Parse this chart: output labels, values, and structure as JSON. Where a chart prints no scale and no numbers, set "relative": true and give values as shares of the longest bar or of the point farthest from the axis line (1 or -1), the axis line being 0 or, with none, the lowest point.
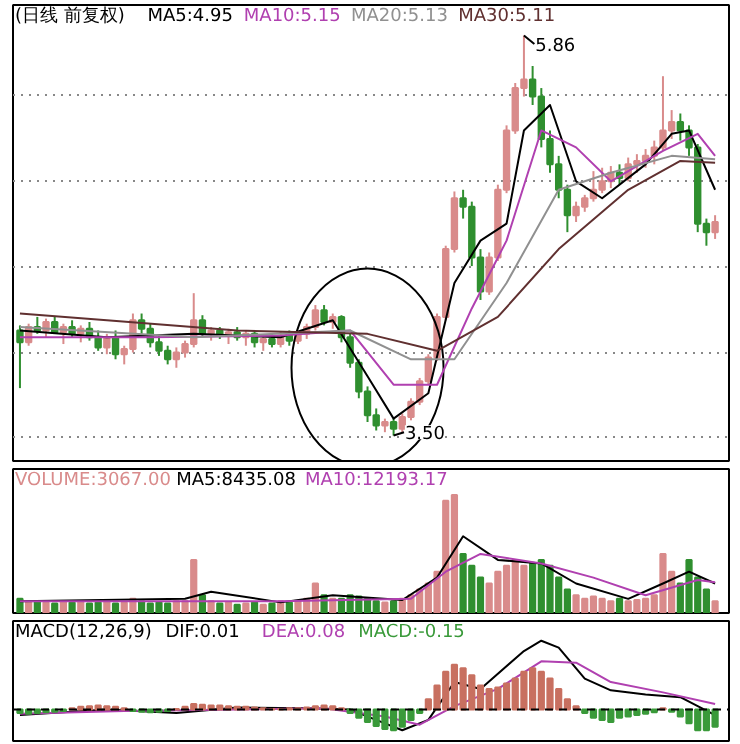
{
  "chart_data": [
    {
      "type": "candlestick",
      "title": "(日线 前复权)",
      "legend": "top",
      "tick_labels": false,
      "grid": "y",
      "categories": [
        null,
        null,
        null,
        null,
        null,
        null,
        null,
        null,
        null,
        null,
        null,
        null,
        null,
        null,
        null,
        null,
        null,
        null,
        null,
        null,
        null,
        null,
        null,
        null,
        null,
        null,
        null,
        null,
        null,
        null,
        null,
        null,
        null,
        null,
        null,
        null,
        null,
        null,
        null,
        null,
        null,
        null,
        null,
        null,
        null,
        null,
        null,
        null,
        null,
        null,
        null,
        null,
        null,
        null,
        null,
        null,
        null,
        null,
        null,
        null,
        null,
        null,
        null,
        null,
        null,
        null,
        null,
        null,
        null,
        null,
        null,
        null,
        null,
        null,
        null,
        null,
        null,
        null,
        null,
        null,
        null
      ],
      "ohlc": [
        [
          4.12,
          4.15,
          3.78,
          4.05
        ],
        [
          4.05,
          4.16,
          4.03,
          4.14
        ],
        [
          4.14,
          4.2,
          4.1,
          4.12
        ],
        [
          4.12,
          4.19,
          4.08,
          4.17
        ],
        [
          4.17,
          4.2,
          4.1,
          4.11
        ],
        [
          4.11,
          4.16,
          4.04,
          4.14
        ],
        [
          4.14,
          4.18,
          4.08,
          4.1
        ],
        [
          4.1,
          4.15,
          4.05,
          4.13
        ],
        [
          4.13,
          4.17,
          4.06,
          4.08
        ],
        [
          4.08,
          4.12,
          4.0,
          4.02
        ],
        [
          4.02,
          4.1,
          3.98,
          4.08
        ],
        [
          4.08,
          4.12,
          3.95,
          3.98
        ],
        [
          3.98,
          4.03,
          3.92,
          4.01
        ],
        [
          4.01,
          4.22,
          3.99,
          4.18
        ],
        [
          4.18,
          4.22,
          4.1,
          4.13
        ],
        [
          4.13,
          4.16,
          4.02,
          4.05
        ],
        [
          4.05,
          4.09,
          3.97,
          4.0
        ],
        [
          4.0,
          4.03,
          3.92,
          3.95
        ],
        [
          3.95,
          4.02,
          3.9,
          3.99
        ],
        [
          3.99,
          4.06,
          3.96,
          4.04
        ],
        [
          4.04,
          4.34,
          4.02,
          4.18
        ],
        [
          4.18,
          4.21,
          4.08,
          4.1
        ],
        [
          4.1,
          4.14,
          4.06,
          4.12
        ],
        [
          4.12,
          4.14,
          4.07,
          4.09
        ],
        [
          4.09,
          4.13,
          4.04,
          4.11
        ],
        [
          4.11,
          4.14,
          4.06,
          4.08
        ],
        [
          4.08,
          4.12,
          4.03,
          4.1
        ],
        [
          4.1,
          4.12,
          4.02,
          4.05
        ],
        [
          4.05,
          4.09,
          4.0,
          4.07
        ],
        [
          4.07,
          4.1,
          4.02,
          4.04
        ],
        [
          4.04,
          4.11,
          4.02,
          4.09
        ],
        [
          4.09,
          4.12,
          4.03,
          4.06
        ],
        [
          4.06,
          4.11,
          4.04,
          4.1
        ],
        [
          4.1,
          4.16,
          4.07,
          4.14
        ],
        [
          4.14,
          4.27,
          4.12,
          4.24
        ],
        [
          4.24,
          4.27,
          4.15,
          4.17
        ],
        [
          4.17,
          4.22,
          4.13,
          4.2
        ],
        [
          4.2,
          4.21,
          4.05,
          4.08
        ],
        [
          4.08,
          4.1,
          3.9,
          3.93
        ],
        [
          3.93,
          3.95,
          3.72,
          3.76
        ],
        [
          3.76,
          3.79,
          3.58,
          3.62
        ],
        [
          3.62,
          3.66,
          3.53,
          3.56
        ],
        [
          3.56,
          3.6,
          3.52,
          3.58
        ],
        [
          3.58,
          3.6,
          3.5,
          3.54
        ],
        [
          3.54,
          3.63,
          3.52,
          3.61
        ],
        [
          3.61,
          3.72,
          3.59,
          3.7
        ],
        [
          3.7,
          3.84,
          3.68,
          3.82
        ],
        [
          3.82,
          3.98,
          3.8,
          3.96
        ],
        [
          3.96,
          4.22,
          3.94,
          4.2
        ],
        [
          4.2,
          4.62,
          4.18,
          4.6
        ],
        [
          4.6,
          4.94,
          4.58,
          4.9
        ],
        [
          4.9,
          4.95,
          4.78,
          4.85
        ],
        [
          4.85,
          4.88,
          4.5,
          4.55
        ],
        [
          4.55,
          4.6,
          4.3,
          4.35
        ],
        [
          4.35,
          4.58,
          4.33,
          4.55
        ],
        [
          4.55,
          4.98,
          4.53,
          4.95
        ],
        [
          4.95,
          5.33,
          4.93,
          5.3
        ],
        [
          5.3,
          5.58,
          5.28,
          5.55
        ],
        [
          5.55,
          5.86,
          5.5,
          5.6
        ],
        [
          5.6,
          5.68,
          5.45,
          5.5
        ],
        [
          5.5,
          5.55,
          5.2,
          5.25
        ],
        [
          5.25,
          5.3,
          5.05,
          5.1
        ],
        [
          5.1,
          5.15,
          4.9,
          4.95
        ],
        [
          4.95,
          4.98,
          4.7,
          4.8
        ],
        [
          4.8,
          4.88,
          4.76,
          4.85
        ],
        [
          4.85,
          4.92,
          4.82,
          4.9
        ],
        [
          4.9,
          5.06,
          4.88,
          4.95
        ],
        [
          4.95,
          5.08,
          4.93,
          5.0
        ],
        [
          5.0,
          5.09,
          4.96,
          5.05
        ],
        [
          5.05,
          5.1,
          4.98,
          5.02
        ],
        [
          5.02,
          5.14,
          5.0,
          5.1
        ],
        [
          5.1,
          5.16,
          5.05,
          5.12
        ],
        [
          5.12,
          5.19,
          5.08,
          5.15
        ],
        [
          5.15,
          5.24,
          5.1,
          5.2
        ],
        [
          5.2,
          5.62,
          5.18,
          5.3
        ],
        [
          5.3,
          5.42,
          5.25,
          5.35
        ],
        [
          5.35,
          5.4,
          5.24,
          5.3
        ],
        [
          5.3,
          5.33,
          5.15,
          5.2
        ],
        [
          5.2,
          5.22,
          4.7,
          4.75
        ],
        [
          4.75,
          4.78,
          4.62,
          4.7
        ],
        [
          4.7,
          4.8,
          4.66,
          4.76
        ]
      ],
      "colors": [
        "#2f8f2f",
        "#d98b8b",
        "#2f8f2f",
        "#d98b8b",
        "#2f8f2f",
        "#d98b8b",
        "#2f8f2f",
        "#d98b8b",
        "#2f8f2f",
        "#2f8f2f",
        "#d98b8b",
        "#2f8f2f",
        "#d98b8b",
        "#d98b8b",
        "#2f8f2f",
        "#2f8f2f",
        "#2f8f2f",
        "#2f8f2f",
        "#d98b8b",
        "#d98b8b",
        "#d98b8b",
        "#2f8f2f",
        "#d98b8b",
        "#2f8f2f",
        "#d98b8b",
        "#2f8f2f",
        "#d98b8b",
        "#2f8f2f",
        "#d98b8b",
        "#2f8f2f",
        "#d98b8b",
        "#2f8f2f",
        "#d98b8b",
        "#d98b8b",
        "#d98b8b",
        "#2f8f2f",
        "#d98b8b",
        "#2f8f2f",
        "#2f8f2f",
        "#2f8f2f",
        "#2f8f2f",
        "#2f8f2f",
        "#d98b8b",
        "#2f8f2f",
        "#d98b8b",
        "#d98b8b",
        "#d98b8b",
        "#d98b8b",
        "#d98b8b",
        "#d98b8b",
        "#d98b8b",
        "#2f8f2f",
        "#2f8f2f",
        "#2f8f2f",
        "#d98b8b",
        "#d98b8b",
        "#d98b8b",
        "#d98b8b",
        "#d98b8b",
        "#2f8f2f",
        "#2f8f2f",
        "#2f8f2f",
        "#2f8f2f",
        "#2f8f2f",
        "#d98b8b",
        "#d98b8b",
        "#d98b8b",
        "#d98b8b",
        "#d98b8b",
        "#2f8f2f",
        "#d98b8b",
        "#d98b8b",
        "#d98b8b",
        "#d98b8b",
        "#d98b8b",
        "#d98b8b",
        "#2f8f2f",
        "#2f8f2f",
        "#2f8f2f",
        "#2f8f2f",
        "#d98b8b"
      ],
      "ylim": [
        3.35,
        6.04
      ],
      "yticks": [
        {
          "value": 3.49,
          "label": null
        },
        {
          "value": 3.99,
          "label": null
        },
        {
          "value": 4.49,
          "label": null
        },
        {
          "value": 5.0,
          "label": null
        },
        {
          "value": 5.51,
          "label": null
        }
      ],
      "series": [
        {
          "name": "MA5:4.95",
          "type": "line",
          "color": "#000000",
          "values": [
            4.12,
            null,
            null,
            null,
            null,
            null,
            null,
            null,
            null,
            null,
            4.08,
            null,
            null,
            null,
            null,
            null,
            null,
            null,
            null,
            null,
            4.1,
            null,
            null,
            null,
            null,
            null,
            null,
            null,
            null,
            null,
            4.08,
            null,
            null,
            null,
            null,
            null,
            4.18,
            null,
            null,
            null,
            3.85,
            null,
            null,
            3.6,
            null,
            null,
            null,
            3.75,
            null,
            null,
            4.4,
            null,
            null,
            4.65,
            null,
            null,
            4.75,
            null,
            5.3,
            null,
            null,
            5.45,
            null,
            null,
            5.0,
            null,
            null,
            4.9,
            null,
            null,
            null,
            null,
            5.1,
            null,
            null,
            5.28,
            null,
            5.3,
            null,
            null,
            4.95
          ]
        },
        {
          "name": "MA10:5.15",
          "type": "line",
          "color": "#b040b0",
          "values": [
            4.08,
            null,
            null,
            null,
            null,
            null,
            null,
            null,
            null,
            null,
            null,
            null,
            null,
            null,
            null,
            4.08,
            null,
            null,
            null,
            null,
            null,
            null,
            null,
            null,
            null,
            null,
            null,
            null,
            null,
            null,
            4.09,
            null,
            null,
            null,
            null,
            null,
            null,
            null,
            4.12,
            null,
            null,
            null,
            null,
            3.8,
            null,
            null,
            null,
            null,
            3.8,
            null,
            null,
            null,
            4.25,
            null,
            null,
            null,
            4.65,
            null,
            null,
            null,
            5.3,
            null,
            null,
            null,
            5.2,
            null,
            null,
            null,
            5.0,
            null,
            null,
            null,
            null,
            null,
            5.18,
            null,
            null,
            null,
            5.28,
            null,
            5.15
          ]
        },
        {
          "name": "MA20:5.13",
          "type": "line",
          "color": "#909090",
          "values": [
            4.14,
            null,
            null,
            null,
            null,
            null,
            null,
            null,
            null,
            null,
            null,
            null,
            null,
            null,
            null,
            null,
            null,
            null,
            null,
            null,
            4.08,
            null,
            null,
            null,
            null,
            null,
            null,
            null,
            null,
            null,
            null,
            null,
            null,
            null,
            null,
            null,
            null,
            null,
            4.12,
            null,
            null,
            null,
            null,
            null,
            null,
            3.95,
            null,
            null,
            null,
            null,
            3.95,
            null,
            null,
            null,
            null,
            null,
            4.4,
            null,
            null,
            null,
            null,
            null,
            4.95,
            null,
            null,
            null,
            null,
            null,
            5.05,
            null,
            null,
            null,
            null,
            null,
            null,
            5.15,
            null,
            null,
            null,
            null,
            5.13
          ]
        },
        {
          "name": "MA30:5.11",
          "type": "line",
          "color": "#603030",
          "values": [
            4.22,
            null,
            null,
            null,
            null,
            null,
            null,
            null,
            null,
            null,
            4.18,
            null,
            null,
            null,
            null,
            null,
            null,
            null,
            null,
            null,
            null,
            null,
            null,
            null,
            null,
            4.12,
            null,
            null,
            null,
            null,
            null,
            null,
            null,
            null,
            null,
            null,
            null,
            null,
            null,
            null,
            4.1,
            null,
            null,
            null,
            null,
            null,
            null,
            null,
            4.0,
            null,
            null,
            null,
            null,
            null,
            null,
            4.2,
            null,
            null,
            null,
            null,
            null,
            null,
            4.6,
            null,
            null,
            null,
            null,
            null,
            null,
            null,
            4.95,
            null,
            null,
            null,
            null,
            null,
            5.12,
            null,
            null,
            null,
            5.11
          ]
        }
      ],
      "annotations": [
        "5.86",
        "3.50"
      ]
    },
    {
      "type": "bar",
      "relative": true,
      "legend": "top",
      "categories": [
        null,
        null,
        null,
        null,
        null,
        null,
        null,
        null,
        null,
        null,
        null,
        null,
        null,
        null,
        null,
        null,
        null,
        null,
        null,
        null,
        null,
        null,
        null,
        null,
        null,
        null,
        null,
        null,
        null,
        null,
        null,
        null,
        null,
        null,
        null,
        null,
        null,
        null,
        null,
        null,
        null,
        null,
        null,
        null,
        null,
        null,
        null,
        null,
        null,
        null,
        null,
        null,
        null,
        null,
        null,
        null,
        null,
        null,
        null,
        null,
        null,
        null,
        null,
        null,
        null,
        null,
        null,
        null,
        null,
        null,
        null,
        null,
        null,
        null,
        null,
        null,
        null,
        null,
        null,
        null,
        null
      ],
      "series": [
        {
          "name": "VOLUME:3067.00",
          "type": "bar",
          "values": [
            0.12,
            0.1,
            0.1,
            0.09,
            0.08,
            0.1,
            0.09,
            0.1,
            0.08,
            0.09,
            0.1,
            0.08,
            0.09,
            0.12,
            0.1,
            0.08,
            0.09,
            0.08,
            0.1,
            0.1,
            0.45,
            0.15,
            0.1,
            0.08,
            0.09,
            0.07,
            0.08,
            0.09,
            0.07,
            0.08,
            0.1,
            0.09,
            0.1,
            0.12,
            0.25,
            0.15,
            0.12,
            0.12,
            0.15,
            0.14,
            0.12,
            0.1,
            0.09,
            0.1,
            0.12,
            0.15,
            0.2,
            0.25,
            0.35,
            0.95,
            1.0,
            0.5,
            0.4,
            0.3,
            0.25,
            0.35,
            0.4,
            0.45,
            0.4,
            0.42,
            0.45,
            0.4,
            0.3,
            0.2,
            0.15,
            0.12,
            0.14,
            0.12,
            0.1,
            0.12,
            0.1,
            0.11,
            0.12,
            0.15,
            0.5,
            0.35,
            0.25,
            0.45,
            0.3,
            0.2,
            0.1
          ],
          "colors": [
            "#2f8f2f",
            "#d98b8b",
            "#2f8f2f",
            "#d98b8b",
            "#2f8f2f",
            "#d98b8b",
            "#2f8f2f",
            "#d98b8b",
            "#2f8f2f",
            "#2f8f2f",
            "#d98b8b",
            "#2f8f2f",
            "#d98b8b",
            "#d98b8b",
            "#2f8f2f",
            "#2f8f2f",
            "#2f8f2f",
            "#2f8f2f",
            "#d98b8b",
            "#d98b8b",
            "#d98b8b",
            "#2f8f2f",
            "#d98b8b",
            "#2f8f2f",
            "#d98b8b",
            "#2f8f2f",
            "#d98b8b",
            "#2f8f2f",
            "#d98b8b",
            "#2f8f2f",
            "#d98b8b",
            "#2f8f2f",
            "#d98b8b",
            "#d98b8b",
            "#d98b8b",
            "#2f8f2f",
            "#d98b8b",
            "#2f8f2f",
            "#2f8f2f",
            "#2f8f2f",
            "#2f8f2f",
            "#2f8f2f",
            "#d98b8b",
            "#2f8f2f",
            "#d98b8b",
            "#d98b8b",
            "#d98b8b",
            "#d98b8b",
            "#d98b8b",
            "#d98b8b",
            "#d98b8b",
            "#2f8f2f",
            "#2f8f2f",
            "#2f8f2f",
            "#d98b8b",
            "#d98b8b",
            "#d98b8b",
            "#d98b8b",
            "#d98b8b",
            "#2f8f2f",
            "#2f8f2f",
            "#2f8f2f",
            "#2f8f2f",
            "#2f8f2f",
            "#d98b8b",
            "#d98b8b",
            "#d98b8b",
            "#d98b8b",
            "#d98b8b",
            "#2f8f2f",
            "#d98b8b",
            "#d98b8b",
            "#d98b8b",
            "#d98b8b",
            "#d98b8b",
            "#d98b8b",
            "#2f8f2f",
            "#2f8f2f",
            "#2f8f2f",
            "#2f8f2f",
            "#d98b8b"
          ]
        },
        {
          "name": "MA5:8435.08",
          "type": "line",
          "color": "#000000",
          "values": [
            0.1,
            null,
            null,
            null,
            null,
            null,
            null,
            null,
            null,
            null,
            null,
            null,
            null,
            null,
            null,
            null,
            null,
            null,
            null,
            0.12,
            null,
            null,
            0.18,
            null,
            null,
            null,
            null,
            null,
            null,
            null,
            0.09,
            null,
            null,
            null,
            null,
            null,
            0.15,
            null,
            null,
            null,
            null,
            null,
            null,
            null,
            0.11,
            null,
            null,
            null,
            0.3,
            null,
            null,
            0.65,
            null,
            null,
            null,
            0.45,
            null,
            null,
            null,
            null,
            0.42,
            null,
            null,
            null,
            0.25,
            null,
            null,
            null,
            null,
            null,
            0.12,
            null,
            null,
            null,
            0.25,
            null,
            null,
            0.35,
            null,
            null,
            0.25
          ]
        },
        {
          "name": "MA10:12193.17",
          "type": "line",
          "color": "#b040b0",
          "values": [
            0.1,
            null,
            null,
            null,
            null,
            null,
            null,
            null,
            null,
            null,
            null,
            null,
            null,
            null,
            null,
            null,
            null,
            null,
            null,
            null,
            0.1,
            null,
            null,
            null,
            null,
            null,
            null,
            null,
            null,
            null,
            0.1,
            null,
            null,
            null,
            null,
            null,
            null,
            null,
            null,
            null,
            null,
            null,
            null,
            null,
            null,
            0.12,
            null,
            null,
            null,
            0.35,
            null,
            null,
            null,
            0.5,
            null,
            null,
            null,
            null,
            null,
            null,
            0.42,
            null,
            null,
            null,
            null,
            null,
            0.3,
            null,
            null,
            null,
            null,
            null,
            0.15,
            null,
            null,
            null,
            null,
            null,
            0.28,
            null,
            0.26
          ]
        }
      ]
    },
    {
      "type": "bar",
      "relative": true,
      "legend": "top",
      "title": "MACD(12,26,9)",
      "categories": [
        null,
        null,
        null,
        null,
        null,
        null,
        null,
        null,
        null,
        null,
        null,
        null,
        null,
        null,
        null,
        null,
        null,
        null,
        null,
        null,
        null,
        null,
        null,
        null,
        null,
        null,
        null,
        null,
        null,
        null,
        null,
        null,
        null,
        null,
        null,
        null,
        null,
        null,
        null,
        null,
        null,
        null,
        null,
        null,
        null,
        null,
        null,
        null,
        null,
        null,
        null,
        null,
        null,
        null,
        null,
        null,
        null,
        null,
        null,
        null,
        null,
        null,
        null,
        null,
        null,
        null,
        null,
        null,
        null,
        null,
        null,
        null,
        null,
        null,
        null,
        null,
        null,
        null,
        null,
        null,
        null
      ],
      "ref_lines": [
        {
          "axis": "y",
          "value": 0,
          "color": "#000000",
          "line_style": "dashed"
        }
      ],
      "series": [
        {
          "name": "DIF:0.01",
          "type": "line",
          "color": "#000000",
          "values": [
            -0.08,
            null,
            null,
            null,
            null,
            null,
            null,
            null,
            null,
            null,
            0.0,
            null,
            null,
            null,
            null,
            null,
            null,
            null,
            -0.05,
            null,
            null,
            null,
            null,
            null,
            null,
            0.03,
            null,
            null,
            null,
            null,
            null,
            null,
            null,
            0.02,
            null,
            null,
            null,
            null,
            0.0,
            null,
            null,
            null,
            -0.2,
            null,
            -0.3,
            null,
            null,
            -0.15,
            null,
            null,
            0.4,
            null,
            null,
            0.3,
            null,
            null,
            null,
            null,
            0.85,
            null,
            1.0,
            null,
            0.9,
            null,
            null,
            0.45,
            null,
            null,
            0.28,
            null,
            null,
            null,
            0.22,
            null,
            null,
            null,
            0.18,
            null,
            0.05,
            null,
            -0.08
          ]
        },
        {
          "name": "DEA:0.08",
          "type": "line",
          "color": "#b040b0",
          "values": [
            -0.06,
            null,
            null,
            null,
            null,
            null,
            null,
            null,
            null,
            null,
            null,
            null,
            -0.02,
            null,
            null,
            null,
            null,
            null,
            null,
            null,
            null,
            null,
            null,
            null,
            null,
            0.0,
            null,
            null,
            null,
            null,
            null,
            null,
            null,
            null,
            null,
            0.02,
            null,
            null,
            null,
            null,
            null,
            null,
            -0.1,
            null,
            null,
            null,
            -0.22,
            null,
            null,
            null,
            0.05,
            null,
            null,
            null,
            null,
            0.3,
            null,
            null,
            null,
            null,
            0.7,
            null,
            null,
            null,
            0.68,
            null,
            null,
            null,
            0.4,
            null,
            null,
            null,
            null,
            null,
            0.25,
            null,
            null,
            null,
            null,
            null,
            0.08
          ]
        },
        {
          "name": "MACD:-0.15",
          "type": "bar",
          "values": [
            -0.05,
            -0.06,
            -0.05,
            -0.04,
            -0.03,
            -0.02,
            0.02,
            0.04,
            0.05,
            0.06,
            0.05,
            0.04,
            0.02,
            -0.02,
            -0.03,
            -0.04,
            -0.03,
            -0.02,
            0.01,
            0.04,
            0.08,
            0.07,
            0.06,
            0.06,
            0.05,
            0.04,
            0.04,
            0.03,
            0.02,
            0.01,
            0.01,
            0.02,
            0.02,
            0.03,
            0.05,
            0.06,
            0.05,
            0.02,
            -0.05,
            -0.12,
            -0.18,
            -0.24,
            -0.28,
            -0.3,
            -0.25,
            -0.15,
            -0.05,
            0.15,
            0.35,
            0.55,
            0.65,
            0.6,
            0.5,
            0.35,
            0.3,
            0.32,
            0.38,
            0.45,
            0.55,
            0.6,
            0.55,
            0.45,
            0.3,
            0.15,
            0.05,
            -0.05,
            -0.12,
            -0.15,
            -0.18,
            -0.12,
            -0.1,
            -0.08,
            -0.06,
            -0.04,
            0.02,
            -0.03,
            -0.1,
            -0.2,
            -0.3,
            -0.3,
            -0.25
          ],
          "colors": [
            "#3a9a3a",
            "#3a9a3a",
            "#3a9a3a",
            "#3a9a3a",
            "#3a9a3a",
            "#3a9a3a",
            "#c87060",
            "#c87060",
            "#c87060",
            "#c87060",
            "#c87060",
            "#c87060",
            "#c87060",
            "#3a9a3a",
            "#3a9a3a",
            "#3a9a3a",
            "#3a9a3a",
            "#3a9a3a",
            "#c87060",
            "#c87060",
            "#c87060",
            "#c87060",
            "#c87060",
            "#c87060",
            "#c87060",
            "#c87060",
            "#c87060",
            "#c87060",
            "#c87060",
            "#c87060",
            "#c87060",
            "#c87060",
            "#c87060",
            "#c87060",
            "#c87060",
            "#c87060",
            "#c87060",
            "#c87060",
            "#3a9a3a",
            "#3a9a3a",
            "#3a9a3a",
            "#3a9a3a",
            "#3a9a3a",
            "#3a9a3a",
            "#3a9a3a",
            "#3a9a3a",
            "#3a9a3a",
            "#c87060",
            "#c87060",
            "#c87060",
            "#c87060",
            "#c87060",
            "#c87060",
            "#c87060",
            "#c87060",
            "#c87060",
            "#c87060",
            "#c87060",
            "#c87060",
            "#c87060",
            "#c87060",
            "#c87060",
            "#c87060",
            "#c87060",
            "#c87060",
            "#3a9a3a",
            "#3a9a3a",
            "#3a9a3a",
            "#3a9a3a",
            "#3a9a3a",
            "#3a9a3a",
            "#3a9a3a",
            "#3a9a3a",
            "#3a9a3a",
            "#c87060",
            "#3a9a3a",
            "#3a9a3a",
            "#3a9a3a",
            "#3a9a3a",
            "#3a9a3a",
            "#3a9a3a"
          ]
        }
      ]
    }
  ]
}
